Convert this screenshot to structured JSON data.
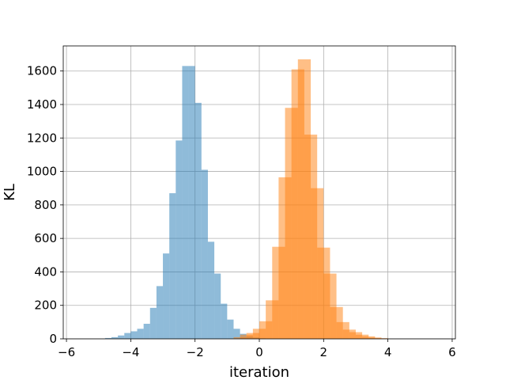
{
  "chart_data": {
    "type": "bar",
    "title": "",
    "xlabel": "iteration",
    "ylabel": "KL",
    "xlim": [
      -6.1,
      6.1
    ],
    "ylim": [
      0,
      1750
    ],
    "xticks": [
      -6,
      -4,
      -2,
      0,
      2,
      4,
      6
    ],
    "yticks": [
      0,
      200,
      400,
      600,
      800,
      1000,
      1200,
      1400,
      1600
    ],
    "xtick_labels": [
      "−6",
      "−4",
      "−2",
      "0",
      "2",
      "4",
      "6"
    ],
    "ytick_labels": [
      "0",
      "200",
      "400",
      "600",
      "800",
      "1000",
      "1200",
      "1400",
      "1600"
    ],
    "grid": true,
    "series": [
      {
        "color": "#1f77b4",
        "opacity": 0.5,
        "bins": [
          [
            -4.8,
            5
          ],
          [
            -4.6,
            10
          ],
          [
            -4.4,
            20
          ],
          [
            -4.2,
            35
          ],
          [
            -4.0,
            45
          ],
          [
            -3.8,
            60
          ],
          [
            -3.6,
            90
          ],
          [
            -3.4,
            185
          ],
          [
            -3.2,
            315
          ],
          [
            -3.0,
            510
          ],
          [
            -2.8,
            870
          ],
          [
            -2.6,
            1185
          ],
          [
            -2.4,
            1630
          ],
          [
            -2.2,
            1630
          ],
          [
            -2.0,
            1410
          ],
          [
            -1.8,
            1010
          ],
          [
            -1.6,
            580
          ],
          [
            -1.4,
            390
          ],
          [
            -1.2,
            210
          ],
          [
            -1.0,
            115
          ],
          [
            -0.8,
            60
          ],
          [
            -0.6,
            30
          ],
          [
            -0.4,
            15
          ],
          [
            -0.2,
            8
          ],
          [
            0.0,
            3
          ]
        ],
        "bin_width": 0.2
      },
      {
        "color": "#ff7f0e",
        "opacity": 0.5,
        "bins": [
          [
            -0.8,
            10
          ],
          [
            -0.6,
            25
          ],
          [
            -0.4,
            35
          ],
          [
            -0.2,
            60
          ],
          [
            0.0,
            105
          ],
          [
            0.2,
            230
          ],
          [
            0.4,
            550
          ],
          [
            0.6,
            965
          ],
          [
            0.8,
            1380
          ],
          [
            1.0,
            1610
          ],
          [
            1.2,
            1670
          ],
          [
            1.4,
            1220
          ],
          [
            1.6,
            900
          ],
          [
            1.8,
            545
          ],
          [
            2.0,
            390
          ],
          [
            2.2,
            190
          ],
          [
            2.4,
            100
          ],
          [
            2.6,
            55
          ],
          [
            2.8,
            40
          ],
          [
            3.0,
            25
          ],
          [
            3.2,
            15
          ],
          [
            3.4,
            8
          ],
          [
            3.6,
            4
          ]
        ],
        "bin_width": 0.4
      }
    ]
  }
}
